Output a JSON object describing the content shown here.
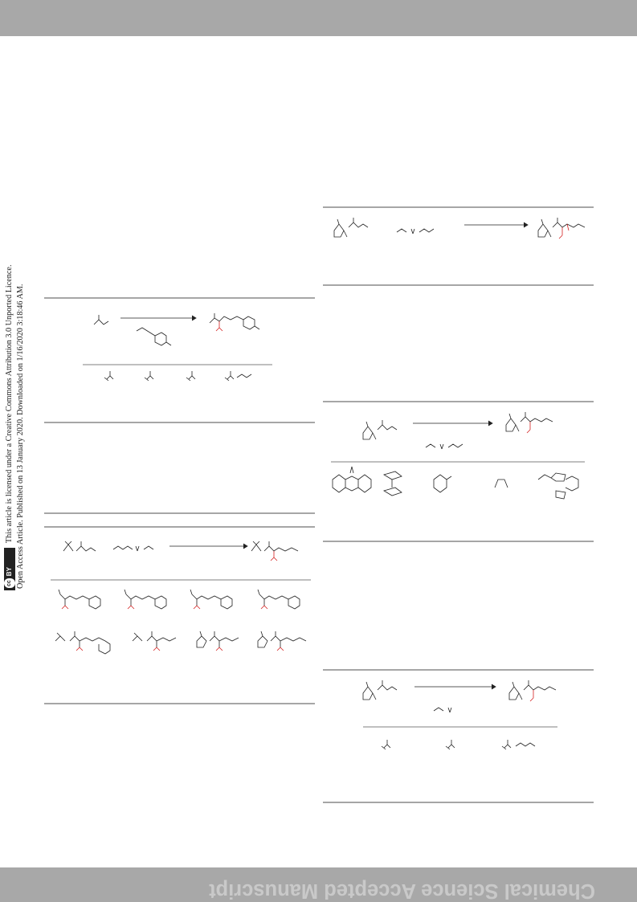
{
  "header_band_color": "#a8a8a8",
  "footer_band_color": "#a8a8a8",
  "watermark": {
    "text": "Chemical Science Accepted Manuscript",
    "color": "#c9c9c9"
  },
  "sidebar": {
    "line1": "Open Access Article. Published on 13 January 2020. Downloaded on 1/16/2020 3:18:46 AM.",
    "line2": "This article is licensed under a Creative Commons Attribution 3.0 Unported Licence.",
    "license_badge": {
      "cc": "cc",
      "by": "BY"
    }
  },
  "schemes": [
    {
      "id": "scheme-1",
      "description_icon": "reaction-scheme",
      "highlight_color": "#d42020"
    },
    {
      "id": "scheme-2",
      "description_icon": "reaction-scheme",
      "highlight_color": "#d42020"
    },
    {
      "id": "scheme-3",
      "description_icon": "reaction-scheme",
      "highlight_color": "#d42020"
    },
    {
      "id": "scheme-4",
      "description_icon": "reaction-scheme",
      "highlight_color": "#d42020"
    },
    {
      "id": "scheme-5",
      "description_icon": "reaction-scheme",
      "highlight_color": "#d42020"
    }
  ]
}
